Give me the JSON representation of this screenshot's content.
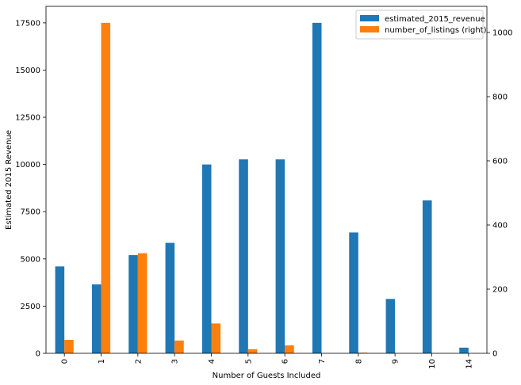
{
  "chart_data": {
    "type": "bar",
    "title": "",
    "xlabel": "Number of Guests Included",
    "ylabel": "Estimated 2015 Revenue",
    "ylabel_right": "",
    "categories": [
      "0",
      "1",
      "2",
      "3",
      "4",
      "5",
      "6",
      "7",
      "8",
      "9",
      "10",
      "14"
    ],
    "series": [
      {
        "name": "estimated_2015_revenue",
        "axis": "left",
        "color": "#1f77b4",
        "values": [
          4600,
          3650,
          5200,
          5850,
          10000,
          10270,
          10270,
          17500,
          6400,
          2880,
          8100,
          300
        ]
      },
      {
        "name": "number_of_listings (right)",
        "axis": "right",
        "color": "#ff7f0e",
        "values": [
          42,
          1030,
          312,
          40,
          93,
          13,
          25,
          0,
          2,
          0,
          0,
          0
        ]
      }
    ],
    "ylim_left": [
      0,
      18375
    ],
    "ylim_right": [
      0,
      1081.5
    ],
    "yticks_left": [
      "0",
      "2500",
      "5000",
      "7500",
      "10000",
      "12500",
      "15000",
      "17500"
    ],
    "yticks_right": [
      "0",
      "200",
      "400",
      "600",
      "800",
      "1000"
    ],
    "grid": false,
    "legend_position": "upper-right"
  }
}
